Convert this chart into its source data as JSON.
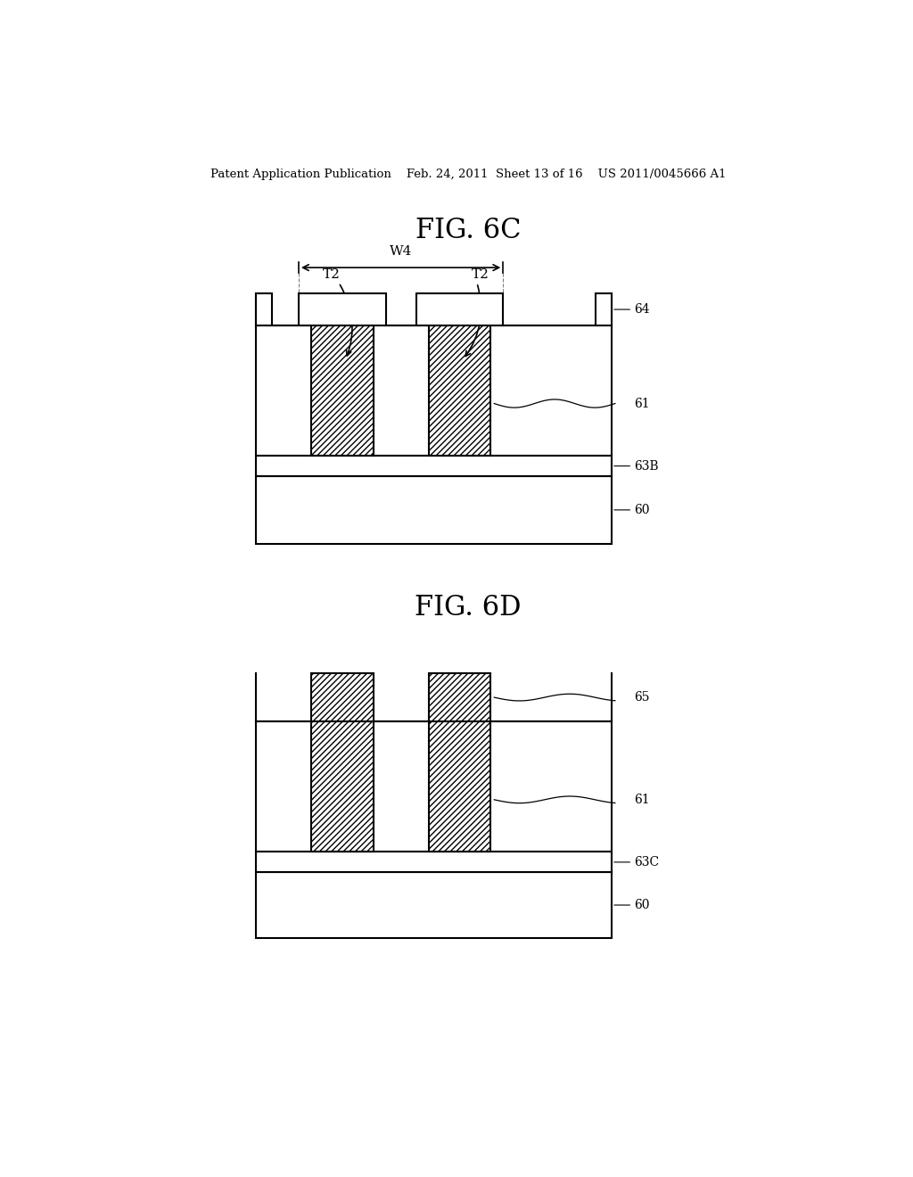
{
  "bg_color": "#ffffff",
  "line_color": "#000000",
  "header_text": "Patent Application Publication    Feb. 24, 2011  Sheet 13 of 16    US 2011/0045666 A1",
  "fig6c_title": "FIG. 6C",
  "fig6d_title": "FIG. 6D"
}
